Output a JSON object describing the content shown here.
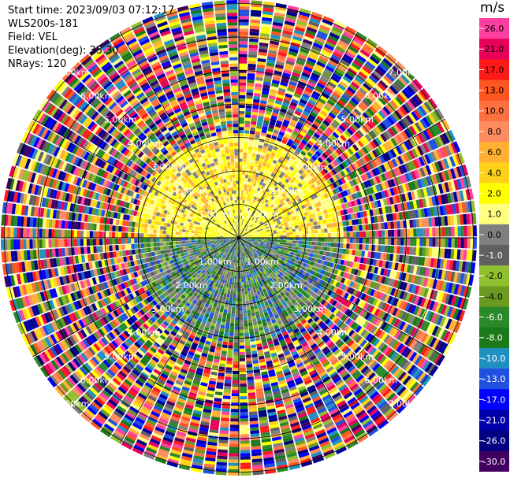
{
  "header": {
    "start_time": "Start time: 2023/09/03 07:12:17",
    "instrument": "WLS200s-181",
    "field": "Field: VEL",
    "elevation": "Elevation(deg): 35.30",
    "nrays": "NRays: 120"
  },
  "colorbar": {
    "unit": "m/s",
    "ticks": [
      "26.0",
      "21.0",
      "17.0",
      "13.0",
      "10.0",
      "8.0",
      "6.0",
      "4.0",
      "2.0",
      "1.0",
      "0.0",
      "-1.0",
      "-2.0",
      "-4.0",
      "-6.0",
      "-8.0",
      "-10.0",
      "-13.0",
      "-17.0",
      "-21.0",
      "-26.0",
      "-30.0"
    ],
    "colors": [
      "#ff3fa0",
      "#e8005a",
      "#ff1a1a",
      "#ff5520",
      "#ff7040",
      "#ff8c60",
      "#ffb030",
      "#ffd21a",
      "#ffff00",
      "#ffff80",
      "#808080",
      "#606060",
      "#90c030",
      "#6a9a20",
      "#2a8a2a",
      "#1a7a1a",
      "#2090c0",
      "#2050e0",
      "#0000ff",
      "#0000aa",
      "#000080",
      "#400060"
    ]
  },
  "range_labels": [
    "1.00km",
    "2.00km",
    "3.00km",
    "4.00km",
    "5.00km",
    "6.00km",
    "7.00km"
  ]
}
